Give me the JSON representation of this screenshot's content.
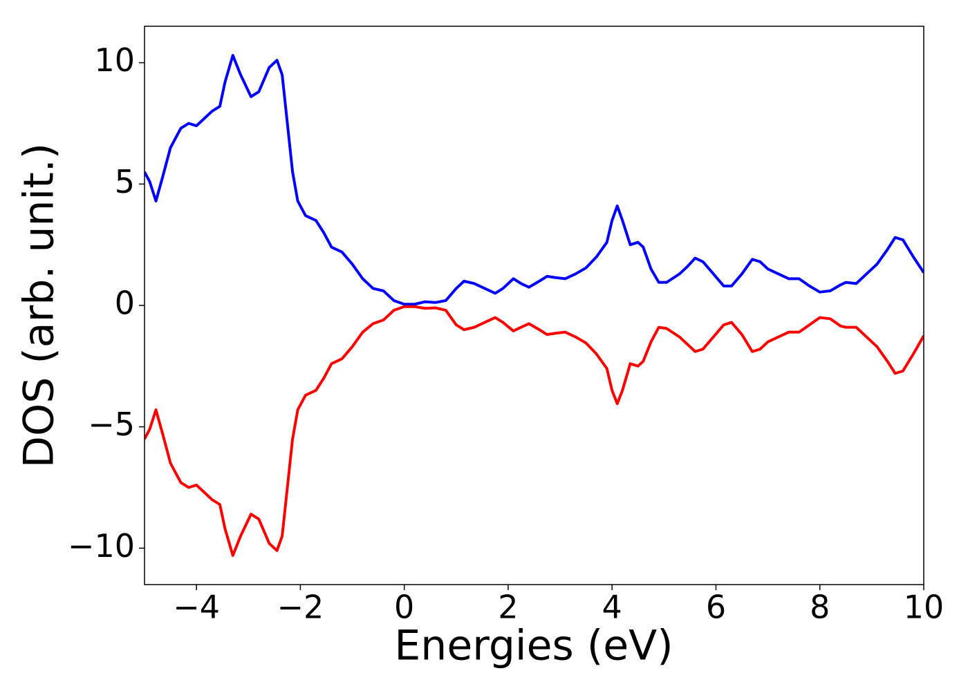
{
  "chart_data": {
    "type": "line",
    "xlabel": "Energies (eV)",
    "ylabel": "DOS (arb. unit.)",
    "x": [
      -5.0,
      -4.9,
      -4.78,
      -4.65,
      -4.5,
      -4.3,
      -4.15,
      -4.0,
      -3.85,
      -3.7,
      -3.55,
      -3.45,
      -3.3,
      -3.15,
      -2.95,
      -2.8,
      -2.6,
      -2.45,
      -2.35,
      -2.25,
      -2.15,
      -2.05,
      -1.9,
      -1.7,
      -1.55,
      -1.4,
      -1.2,
      -1.0,
      -0.8,
      -0.6,
      -0.4,
      -0.2,
      0.0,
      0.2,
      0.4,
      0.6,
      0.8,
      1.0,
      1.15,
      1.35,
      1.55,
      1.75,
      1.9,
      2.1,
      2.25,
      2.4,
      2.6,
      2.75,
      2.9,
      3.1,
      3.3,
      3.5,
      3.7,
      3.9,
      4.0,
      4.1,
      4.2,
      4.35,
      4.5,
      4.6,
      4.75,
      4.9,
      5.05,
      5.3,
      5.45,
      5.6,
      5.75,
      5.95,
      6.15,
      6.3,
      6.5,
      6.7,
      6.85,
      7.0,
      7.2,
      7.4,
      7.6,
      7.8,
      8.0,
      8.2,
      8.4,
      8.5,
      8.7,
      8.9,
      9.1,
      9.3,
      9.45,
      9.6,
      9.8,
      10.0
    ],
    "series": [
      {
        "color": "#0000ff",
        "values": [
          5.5,
          5.1,
          4.3,
          5.3,
          6.5,
          7.3,
          7.5,
          7.4,
          7.7,
          8.0,
          8.2,
          9.2,
          10.3,
          9.5,
          8.6,
          8.8,
          9.8,
          10.1,
          9.5,
          7.5,
          5.5,
          4.3,
          3.7,
          3.5,
          3.0,
          2.4,
          2.2,
          1.7,
          1.1,
          0.7,
          0.6,
          0.2,
          0.05,
          0.05,
          0.15,
          0.12,
          0.2,
          0.7,
          1.0,
          0.9,
          0.7,
          0.5,
          0.7,
          1.1,
          0.9,
          0.75,
          1.0,
          1.2,
          1.15,
          1.1,
          1.3,
          1.55,
          2.0,
          2.6,
          3.5,
          4.1,
          3.5,
          2.5,
          2.6,
          2.4,
          1.5,
          0.95,
          0.95,
          1.3,
          1.6,
          1.95,
          1.8,
          1.3,
          0.8,
          0.8,
          1.3,
          1.9,
          1.8,
          1.5,
          1.3,
          1.1,
          1.1,
          0.8,
          0.55,
          0.6,
          0.85,
          0.95,
          0.9,
          1.3,
          1.7,
          2.3,
          2.8,
          2.7,
          2.0,
          1.35
        ]
      },
      {
        "color": "#ff0000",
        "values": [
          -5.5,
          -5.1,
          -4.3,
          -5.3,
          -6.5,
          -7.3,
          -7.5,
          -7.4,
          -7.7,
          -8.0,
          -8.2,
          -9.2,
          -10.3,
          -9.5,
          -8.6,
          -8.8,
          -9.8,
          -10.1,
          -9.5,
          -7.5,
          -5.5,
          -4.3,
          -3.7,
          -3.5,
          -3.0,
          -2.4,
          -2.2,
          -1.7,
          -1.1,
          -0.75,
          -0.6,
          -0.2,
          -0.05,
          -0.05,
          -0.12,
          -0.1,
          -0.2,
          -0.8,
          -1.0,
          -0.9,
          -0.7,
          -0.5,
          -0.7,
          -1.05,
          -0.9,
          -0.75,
          -1.0,
          -1.2,
          -1.15,
          -1.1,
          -1.3,
          -1.55,
          -2.0,
          -2.6,
          -3.5,
          -4.05,
          -3.5,
          -2.4,
          -2.5,
          -2.3,
          -1.5,
          -0.9,
          -0.95,
          -1.3,
          -1.6,
          -1.9,
          -1.8,
          -1.3,
          -0.8,
          -0.7,
          -1.2,
          -1.9,
          -1.8,
          -1.5,
          -1.3,
          -1.1,
          -1.1,
          -0.8,
          -0.5,
          -0.55,
          -0.85,
          -0.9,
          -0.9,
          -1.3,
          -1.7,
          -2.3,
          -2.8,
          -2.7,
          -2.0,
          -1.25
        ]
      }
    ],
    "xlim": [
      -5,
      10
    ],
    "ylim": [
      -11.5,
      11.5
    ],
    "xticks": [
      {
        "value": -4,
        "label": "−4"
      },
      {
        "value": -2,
        "label": "−2"
      },
      0,
      2,
      4,
      6,
      8,
      10
    ],
    "yticks": [
      {
        "value": -10,
        "label": "−10"
      },
      {
        "value": -5,
        "label": "−5"
      },
      0,
      5,
      10
    ]
  }
}
